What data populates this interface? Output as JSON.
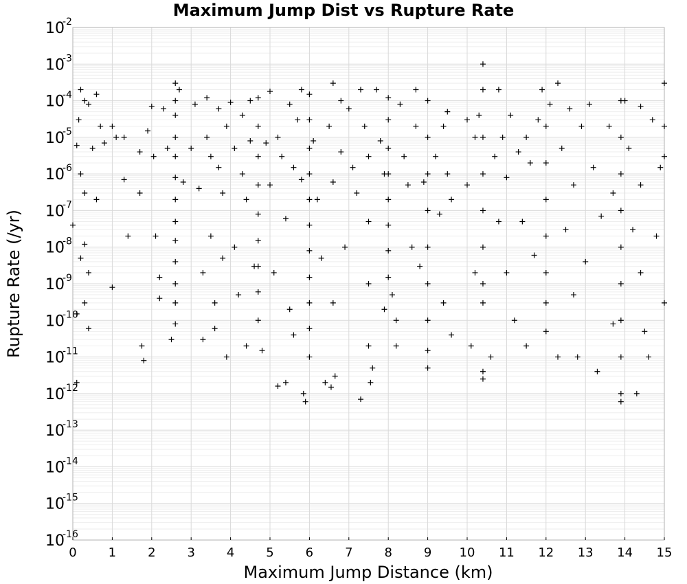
{
  "chart_data": {
    "type": "scatter",
    "title": "Maximum Jump Dist vs Rupture Rate",
    "xlabel": "Maximum Jump Distance (km)",
    "ylabel": "Rupture Rate (/yr)",
    "xlim": [
      0,
      15
    ],
    "ylim": [
      1e-16,
      0.01
    ],
    "yscale": "log",
    "grid": true,
    "marker": "+",
    "color": "#000000",
    "x_ticks": [
      "0",
      "1",
      "2",
      "3",
      "4",
      "5",
      "6",
      "7",
      "8",
      "9",
      "10",
      "11",
      "12",
      "13",
      "14",
      "15"
    ],
    "y_ticks": [
      {
        "base": "10",
        "exp": "-2"
      },
      {
        "base": "10",
        "exp": "-3"
      },
      {
        "base": "10",
        "exp": "-4"
      },
      {
        "base": "10",
        "exp": "-5"
      },
      {
        "base": "10",
        "exp": "-6"
      },
      {
        "base": "10",
        "exp": "-7"
      },
      {
        "base": "10",
        "exp": "-8"
      },
      {
        "base": "10",
        "exp": "-9"
      },
      {
        "base": "10",
        "exp": "-10"
      },
      {
        "base": "10",
        "exp": "-11"
      },
      {
        "base": "10",
        "exp": "-12"
      },
      {
        "base": "10",
        "exp": "-13"
      },
      {
        "base": "10",
        "exp": "-14"
      },
      {
        "base": "10",
        "exp": "-15"
      },
      {
        "base": "10",
        "exp": "-16"
      }
    ],
    "series": [
      {
        "points": [
          [
            0.0,
            4e-08
          ],
          [
            0.1,
            2e-12
          ],
          [
            0.1,
            1.5e-10
          ],
          [
            0.1,
            6e-06
          ],
          [
            0.15,
            3e-05
          ],
          [
            0.2,
            0.0002
          ],
          [
            0.2,
            5e-09
          ],
          [
            0.2,
            1e-06
          ],
          [
            0.3,
            0.0001
          ],
          [
            0.3,
            3e-07
          ],
          [
            0.3,
            1.2e-08
          ],
          [
            0.3,
            3e-10
          ],
          [
            0.4,
            8e-05
          ],
          [
            0.4,
            2e-09
          ],
          [
            0.4,
            6e-11
          ],
          [
            0.5,
            5e-06
          ],
          [
            0.6,
            0.00015
          ],
          [
            0.6,
            2e-07
          ],
          [
            0.7,
            2e-05
          ],
          [
            0.8,
            7e-06
          ],
          [
            1.0,
            2e-05
          ],
          [
            1.0,
            8e-10
          ],
          [
            1.1,
            1e-05
          ],
          [
            1.3,
            7e-07
          ],
          [
            1.3,
            1e-05
          ],
          [
            1.4,
            2e-08
          ],
          [
            1.7,
            3e-07
          ],
          [
            1.7,
            4e-06
          ],
          [
            1.75,
            2e-11
          ],
          [
            1.8,
            8e-12
          ],
          [
            1.9,
            1.5e-05
          ],
          [
            2.0,
            7e-05
          ],
          [
            2.05,
            3e-06
          ],
          [
            2.1,
            2e-08
          ],
          [
            2.2,
            1.5e-09
          ],
          [
            2.2,
            4e-10
          ],
          [
            2.3,
            6e-05
          ],
          [
            2.4,
            5e-06
          ],
          [
            2.5,
            3e-11
          ],
          [
            2.6,
            0.0003
          ],
          [
            2.6,
            0.0001
          ],
          [
            2.6,
            4e-05
          ],
          [
            2.6,
            1e-05
          ],
          [
            2.6,
            3e-06
          ],
          [
            2.6,
            8e-07
          ],
          [
            2.6,
            2e-07
          ],
          [
            2.6,
            5e-08
          ],
          [
            2.6,
            1.5e-08
          ],
          [
            2.6,
            4e-09
          ],
          [
            2.6,
            1e-09
          ],
          [
            2.6,
            3e-10
          ],
          [
            2.6,
            8e-11
          ],
          [
            2.7,
            0.0002
          ],
          [
            2.8,
            6e-07
          ],
          [
            3.0,
            5e-06
          ],
          [
            3.1,
            8e-05
          ],
          [
            3.2,
            4e-07
          ],
          [
            3.3,
            3e-11
          ],
          [
            3.3,
            2e-09
          ],
          [
            3.4,
            0.00012
          ],
          [
            3.4,
            1e-05
          ],
          [
            3.5,
            3e-06
          ],
          [
            3.5,
            2e-08
          ],
          [
            3.6,
            3e-10
          ],
          [
            3.6,
            6e-11
          ],
          [
            3.7,
            6e-05
          ],
          [
            3.7,
            1.5e-06
          ],
          [
            3.8,
            3e-07
          ],
          [
            3.8,
            5e-09
          ],
          [
            3.9,
            1e-11
          ],
          [
            3.9,
            2e-05
          ],
          [
            4.0,
            9e-05
          ],
          [
            4.1,
            5e-06
          ],
          [
            4.1,
            1e-08
          ],
          [
            4.2,
            5e-10
          ],
          [
            4.3,
            4e-05
          ],
          [
            4.3,
            1e-06
          ],
          [
            4.4,
            2e-07
          ],
          [
            4.4,
            2e-11
          ],
          [
            4.5,
            0.0001
          ],
          [
            4.5,
            8e-06
          ],
          [
            4.6,
            3e-09
          ],
          [
            4.7,
            0.00012
          ],
          [
            4.7,
            2e-05
          ],
          [
            4.7,
            3e-06
          ],
          [
            4.7,
            5e-07
          ],
          [
            4.7,
            8e-08
          ],
          [
            4.7,
            1.5e-08
          ],
          [
            4.7,
            3e-09
          ],
          [
            4.7,
            6e-10
          ],
          [
            4.7,
            1e-10
          ],
          [
            4.8,
            1.5e-11
          ],
          [
            4.9,
            7e-06
          ],
          [
            5.0,
            0.00018
          ],
          [
            5.0,
            5e-07
          ],
          [
            5.1,
            2e-09
          ],
          [
            5.2,
            1e-05
          ],
          [
            5.2,
            1.6e-12
          ],
          [
            5.3,
            3e-06
          ],
          [
            5.4,
            2e-12
          ],
          [
            5.4,
            6e-08
          ],
          [
            5.5,
            8e-05
          ],
          [
            5.5,
            2e-10
          ],
          [
            5.6,
            1.5e-06
          ],
          [
            5.6,
            4e-11
          ],
          [
            5.7,
            3e-05
          ],
          [
            5.8,
            0.0002
          ],
          [
            5.8,
            7e-07
          ],
          [
            5.85,
            1e-12
          ],
          [
            5.9,
            6e-13
          ],
          [
            6.0,
            0.00015
          ],
          [
            6.0,
            3e-05
          ],
          [
            6.0,
            5e-06
          ],
          [
            6.0,
            1e-06
          ],
          [
            6.0,
            2e-07
          ],
          [
            6.0,
            4e-08
          ],
          [
            6.0,
            8e-09
          ],
          [
            6.0,
            1.5e-09
          ],
          [
            6.0,
            3e-10
          ],
          [
            6.0,
            6e-11
          ],
          [
            6.0,
            1e-11
          ],
          [
            6.1,
            8e-06
          ],
          [
            6.2,
            2e-07
          ],
          [
            6.3,
            5e-09
          ],
          [
            6.4,
            2e-12
          ],
          [
            6.5,
            2e-05
          ],
          [
            6.55,
            1.5e-12
          ],
          [
            6.6,
            0.0003
          ],
          [
            6.6,
            6e-07
          ],
          [
            6.6,
            3e-10
          ],
          [
            6.65,
            3e-12
          ],
          [
            6.8,
            0.0001
          ],
          [
            6.8,
            4e-06
          ],
          [
            6.9,
            1e-08
          ],
          [
            7.0,
            6e-05
          ],
          [
            7.1,
            1.5e-06
          ],
          [
            7.2,
            3e-07
          ],
          [
            7.3,
            0.0002
          ],
          [
            7.3,
            7e-13
          ],
          [
            7.4,
            2e-05
          ],
          [
            7.5,
            3e-06
          ],
          [
            7.5,
            5e-08
          ],
          [
            7.5,
            1e-09
          ],
          [
            7.5,
            2e-11
          ],
          [
            7.55,
            2e-12
          ],
          [
            7.6,
            5e-12
          ],
          [
            7.7,
            0.0002
          ],
          [
            7.8,
            8e-06
          ],
          [
            7.9,
            1e-06
          ],
          [
            7.9,
            2e-10
          ],
          [
            8.0,
            0.00012
          ],
          [
            8.0,
            3e-05
          ],
          [
            8.0,
            5e-06
          ],
          [
            8.0,
            1e-06
          ],
          [
            8.0,
            2e-07
          ],
          [
            8.0,
            4e-08
          ],
          [
            8.0,
            8e-09
          ],
          [
            8.0,
            1.5e-09
          ],
          [
            8.1,
            5e-10
          ],
          [
            8.2,
            1e-10
          ],
          [
            8.2,
            2e-11
          ],
          [
            8.3,
            8e-05
          ],
          [
            8.4,
            3e-06
          ],
          [
            8.5,
            5e-07
          ],
          [
            8.6,
            1e-08
          ],
          [
            8.7,
            0.0002
          ],
          [
            8.7,
            2e-05
          ],
          [
            8.8,
            3e-09
          ],
          [
            8.9,
            6e-07
          ],
          [
            9.0,
            0.0001
          ],
          [
            9.0,
            1e-05
          ],
          [
            9.0,
            1e-06
          ],
          [
            9.0,
            1e-07
          ],
          [
            9.0,
            1e-08
          ],
          [
            9.0,
            1e-09
          ],
          [
            9.0,
            1e-10
          ],
          [
            9.0,
            1.5e-11
          ],
          [
            9.0,
            5e-12
          ],
          [
            9.2,
            3e-06
          ],
          [
            9.3,
            8e-08
          ],
          [
            9.4,
            2e-05
          ],
          [
            9.4,
            3e-10
          ],
          [
            9.5,
            5e-05
          ],
          [
            9.5,
            1e-06
          ],
          [
            9.6,
            2e-07
          ],
          [
            9.6,
            4e-11
          ],
          [
            10.0,
            3e-05
          ],
          [
            10.0,
            5e-07
          ],
          [
            10.1,
            2e-11
          ],
          [
            10.2,
            1e-05
          ],
          [
            10.2,
            2e-09
          ],
          [
            10.3,
            4e-05
          ],
          [
            10.4,
            0.001
          ],
          [
            10.4,
            0.0002
          ],
          [
            10.4,
            1e-05
          ],
          [
            10.4,
            1e-06
          ],
          [
            10.4,
            1e-07
          ],
          [
            10.4,
            1e-08
          ],
          [
            10.4,
            1e-09
          ],
          [
            10.4,
            3e-10
          ],
          [
            10.4,
            4e-12
          ],
          [
            10.4,
            2.5e-12
          ],
          [
            10.6,
            1e-11
          ],
          [
            10.7,
            3e-06
          ],
          [
            10.8,
            0.0002
          ],
          [
            10.8,
            5e-08
          ],
          [
            10.9,
            1e-05
          ],
          [
            11.0,
            8e-07
          ],
          [
            11.0,
            2e-09
          ],
          [
            11.1,
            4e-05
          ],
          [
            11.2,
            1e-10
          ],
          [
            11.3,
            4e-06
          ],
          [
            11.4,
            5e-08
          ],
          [
            11.5,
            1e-05
          ],
          [
            11.5,
            2e-11
          ],
          [
            11.6,
            2e-06
          ],
          [
            11.7,
            6e-09
          ],
          [
            11.8,
            3e-05
          ],
          [
            11.9,
            0.0002
          ],
          [
            12.0,
            2e-05
          ],
          [
            12.0,
            2e-06
          ],
          [
            12.0,
            2e-07
          ],
          [
            12.0,
            2e-08
          ],
          [
            12.0,
            2e-09
          ],
          [
            12.0,
            3e-10
          ],
          [
            12.0,
            5e-11
          ],
          [
            12.1,
            8e-05
          ],
          [
            12.3,
            0.0003
          ],
          [
            12.3,
            1e-11
          ],
          [
            12.4,
            5e-06
          ],
          [
            12.5,
            3e-08
          ],
          [
            12.6,
            6e-05
          ],
          [
            12.7,
            5e-07
          ],
          [
            12.7,
            5e-10
          ],
          [
            12.8,
            1e-11
          ],
          [
            12.9,
            2e-05
          ],
          [
            13.0,
            4e-09
          ],
          [
            13.1,
            8e-05
          ],
          [
            13.2,
            1.5e-06
          ],
          [
            13.3,
            4e-12
          ],
          [
            13.4,
            7e-08
          ],
          [
            13.6,
            2e-05
          ],
          [
            13.7,
            8e-11
          ],
          [
            13.7,
            3e-07
          ],
          [
            13.9,
            0.0001
          ],
          [
            13.9,
            1e-05
          ],
          [
            13.9,
            1e-06
          ],
          [
            13.9,
            1e-07
          ],
          [
            13.9,
            1e-08
          ],
          [
            13.9,
            1e-09
          ],
          [
            13.9,
            1e-10
          ],
          [
            13.9,
            1e-11
          ],
          [
            13.9,
            1e-12
          ],
          [
            13.9,
            6e-13
          ],
          [
            14.0,
            0.0001
          ],
          [
            14.1,
            5e-06
          ],
          [
            14.2,
            3e-08
          ],
          [
            14.3,
            1e-12
          ],
          [
            14.4,
            7e-05
          ],
          [
            14.4,
            5e-07
          ],
          [
            14.4,
            2e-09
          ],
          [
            14.5,
            5e-11
          ],
          [
            14.6,
            1e-11
          ],
          [
            14.7,
            3e-05
          ],
          [
            14.8,
            2e-08
          ],
          [
            14.9,
            1.5e-06
          ],
          [
            15.0,
            0.0003
          ],
          [
            15.0,
            2e-05
          ],
          [
            15.0,
            3e-06
          ],
          [
            15.0,
            3e-10
          ]
        ]
      }
    ]
  }
}
